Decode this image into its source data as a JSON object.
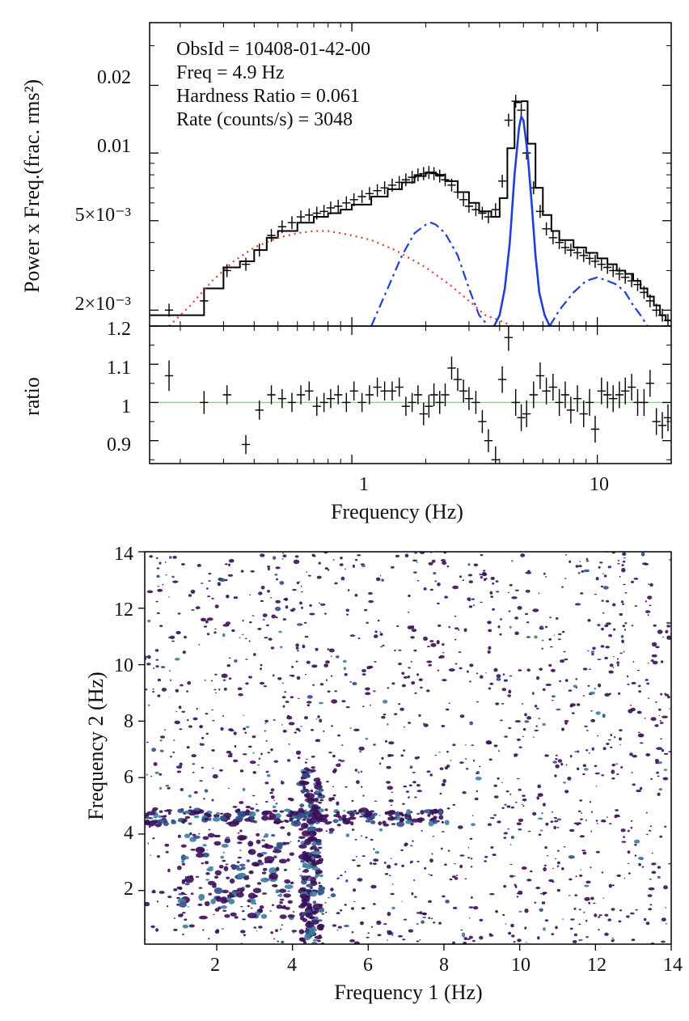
{
  "chart_data": [
    {
      "type": "line",
      "panel": "top",
      "xscale": "log",
      "yscale": "log",
      "xlim": [
        0.15,
        20
      ],
      "ylim": [
        0.0017,
        0.038
      ],
      "xlabel": "Frequency (Hz)",
      "ylabel": "Power x Freq.(frac. rms²)",
      "ytick_labels": [
        {
          "value": 0.02,
          "text": "0.02"
        },
        {
          "value": 0.01,
          "text": "0.01"
        },
        {
          "value": 0.005,
          "text": "5×10⁻³"
        },
        {
          "value": 0.002,
          "text": "2×10⁻³"
        }
      ],
      "annotations": [
        "ObsId = 10408-01-42-00",
        "Freq = 4.9 Hz",
        "Hardness Ratio = 0.061",
        "Rate (counts/s) = 3048"
      ],
      "colors": {
        "data": "#000000",
        "model": "#000000",
        "continuum": "#e8352b",
        "lorentzian": "#1f3fd8"
      },
      "series": [
        {
          "name": "data",
          "style": "crosses",
          "x": [
            0.18,
            0.25,
            0.31,
            0.37,
            0.42,
            0.47,
            0.52,
            0.57,
            0.62,
            0.67,
            0.72,
            0.77,
            0.82,
            0.88,
            0.95,
            1.02,
            1.1,
            1.18,
            1.27,
            1.36,
            1.46,
            1.56,
            1.66,
            1.76,
            1.86,
            1.96,
            2.06,
            2.16,
            2.28,
            2.4,
            2.55,
            2.7,
            2.85,
            3.0,
            3.2,
            3.4,
            3.6,
            3.85,
            4.1,
            4.35,
            4.65,
            4.9,
            5.15,
            5.5,
            5.85,
            6.2,
            6.6,
            7.0,
            7.4,
            7.8,
            8.3,
            8.8,
            9.3,
            9.8,
            10.4,
            11.0,
            11.6,
            12.3,
            13.0,
            13.8,
            14.6,
            15.5,
            16.4,
            17.4,
            18.4,
            19.4
          ],
          "y": [
            0.002,
            0.0022,
            0.003,
            0.0032,
            0.0037,
            0.0043,
            0.0047,
            0.0049,
            0.0052,
            0.0053,
            0.0054,
            0.0055,
            0.0057,
            0.0058,
            0.006,
            0.0062,
            0.0064,
            0.0066,
            0.0068,
            0.007,
            0.0072,
            0.0074,
            0.0076,
            0.0078,
            0.008,
            0.0081,
            0.0082,
            0.0081,
            0.0079,
            0.0076,
            0.0072,
            0.0067,
            0.0062,
            0.0058,
            0.0056,
            0.0054,
            0.0052,
            0.0056,
            0.0075,
            0.014,
            0.017,
            0.0155,
            0.01,
            0.007,
            0.0055,
            0.0046,
            0.0042,
            0.004,
            0.0038,
            0.0037,
            0.0036,
            0.0035,
            0.0034,
            0.0033,
            0.0032,
            0.0031,
            0.003,
            0.0029,
            0.0028,
            0.0027,
            0.0026,
            0.0024,
            0.0022,
            0.002,
            0.0019,
            0.0018
          ]
        },
        {
          "name": "model",
          "style": "step",
          "x": [
            0.15,
            0.2,
            0.25,
            0.3,
            0.35,
            0.4,
            0.45,
            0.5,
            0.6,
            0.7,
            0.8,
            0.9,
            1.0,
            1.2,
            1.4,
            1.6,
            1.8,
            2.0,
            2.2,
            2.4,
            2.7,
            3.0,
            3.3,
            3.7,
            4.0,
            4.3,
            4.6,
            4.9,
            5.2,
            5.6,
            6.0,
            6.5,
            7.0,
            8.0,
            9.0,
            10.0,
            11.0,
            12.0,
            13.0,
            14.0,
            15.0,
            16.0,
            17.0,
            18.0,
            19.0,
            20.0
          ],
          "y": [
            0.0019,
            0.0019,
            0.0025,
            0.0031,
            0.0033,
            0.0037,
            0.0042,
            0.0045,
            0.0049,
            0.0052,
            0.0054,
            0.0056,
            0.0059,
            0.0064,
            0.0069,
            0.0074,
            0.0079,
            0.0082,
            0.008,
            0.0075,
            0.0067,
            0.006,
            0.0055,
            0.0052,
            0.0063,
            0.0105,
            0.0168,
            0.017,
            0.011,
            0.007,
            0.0053,
            0.0045,
            0.0041,
            0.0038,
            0.0036,
            0.0034,
            0.0032,
            0.003,
            0.0029,
            0.0027,
            0.0025,
            0.0023,
            0.0021,
            0.0019,
            0.0018,
            0.0017
          ]
        },
        {
          "name": "continuum",
          "style": "dotted",
          "x": [
            0.18,
            0.22,
            0.27,
            0.33,
            0.4,
            0.5,
            0.6,
            0.7,
            0.8,
            0.9,
            1.0,
            1.2,
            1.5,
            2.0,
            2.5,
            3.0,
            3.5,
            4.0,
            4.5
          ],
          "y": [
            0.0017,
            0.0021,
            0.0027,
            0.0033,
            0.0038,
            0.0042,
            0.0044,
            0.0045,
            0.0045,
            0.0044,
            0.0043,
            0.0041,
            0.0037,
            0.0031,
            0.0026,
            0.0022,
            0.0019,
            0.0018,
            0.0017
          ]
        },
        {
          "name": "qpo_low",
          "style": "dashdot",
          "x": [
            1.2,
            1.4,
            1.6,
            1.8,
            2.0,
            2.1,
            2.2,
            2.4,
            2.7,
            3.0,
            3.3,
            3.6
          ],
          "y": [
            0.0017,
            0.0025,
            0.0035,
            0.0044,
            0.0048,
            0.0049,
            0.0048,
            0.0044,
            0.0035,
            0.0025,
            0.0019,
            0.0017
          ]
        },
        {
          "name": "qpo_main",
          "style": "solid",
          "x": [
            3.8,
            4.0,
            4.2,
            4.4,
            4.6,
            4.8,
            4.9,
            5.0,
            5.2,
            5.4,
            5.6,
            5.8,
            6.1,
            6.4
          ],
          "y": [
            0.0017,
            0.0019,
            0.0025,
            0.004,
            0.008,
            0.013,
            0.0145,
            0.014,
            0.01,
            0.006,
            0.0035,
            0.0024,
            0.0019,
            0.0017
          ]
        },
        {
          "name": "qpo_harmonic",
          "style": "dashdot",
          "x": [
            6.4,
            7.0,
            8.0,
            9.0,
            10.0,
            11.0,
            12.0,
            13.0,
            14.0,
            15.0,
            16.0
          ],
          "y": [
            0.0017,
            0.002,
            0.0024,
            0.0027,
            0.0028,
            0.0027,
            0.0026,
            0.0024,
            0.0021,
            0.0019,
            0.0017
          ]
        }
      ]
    },
    {
      "type": "line",
      "panel": "ratio",
      "xscale": "log",
      "xlim": [
        0.15,
        20
      ],
      "ylim": [
        0.84,
        1.2
      ],
      "ylabel": "ratio",
      "xlabel": "Frequency (Hz)",
      "yticks": [
        0.9,
        1,
        1.1,
        1.2
      ],
      "ytick_labels": [
        "0.9",
        "1",
        "1.1",
        "1.2"
      ],
      "xtick_labels": [
        {
          "value": 1,
          "text": "1"
        },
        {
          "value": 10,
          "text": "10"
        }
      ],
      "reference_line": 1,
      "reference_color": "#7fd87f",
      "x": [
        0.18,
        0.25,
        0.31,
        0.37,
        0.42,
        0.47,
        0.52,
        0.57,
        0.62,
        0.67,
        0.72,
        0.77,
        0.82,
        0.88,
        0.95,
        1.02,
        1.1,
        1.18,
        1.27,
        1.36,
        1.46,
        1.56,
        1.66,
        1.76,
        1.86,
        1.96,
        2.06,
        2.16,
        2.28,
        2.4,
        2.55,
        2.7,
        2.85,
        3.0,
        3.2,
        3.4,
        3.6,
        3.85,
        4.1,
        4.35,
        4.65,
        4.9,
        5.15,
        5.5,
        5.85,
        6.2,
        6.6,
        7.0,
        7.4,
        7.8,
        8.3,
        8.8,
        9.3,
        9.8,
        10.4,
        11.0,
        11.6,
        12.3,
        13.0,
        13.8,
        14.6,
        15.5,
        16.4,
        17.4,
        18.4,
        19.4
      ],
      "y": [
        1.07,
        1.0,
        1.02,
        0.89,
        0.98,
        1.02,
        1.01,
        1.0,
        1.02,
        1.03,
        0.99,
        1.0,
        1.01,
        1.02,
        1.0,
        1.03,
        1.0,
        1.02,
        1.04,
        1.03,
        1.03,
        1.04,
        0.99,
        1.0,
        1.02,
        0.97,
        0.99,
        1.02,
        1.0,
        1.02,
        1.09,
        1.06,
        1.03,
        1.01,
        1.0,
        0.95,
        0.9,
        0.85,
        1.06,
        1.17,
        1.0,
        0.96,
        0.97,
        1.02,
        1.07,
        1.03,
        1.04,
        1.0,
        1.02,
        0.98,
        1.01,
        0.97,
        1.0,
        0.93,
        1.03,
        1.02,
        1.01,
        1.02,
        1.03,
        1.04,
        1.0,
        1.0,
        1.05,
        0.95,
        0.94,
        0.96
      ],
      "yerr": [
        0.04,
        0.03,
        0.025,
        0.025,
        0.025,
        0.025,
        0.025,
        0.025,
        0.025,
        0.025,
        0.025,
        0.025,
        0.025,
        0.025,
        0.025,
        0.025,
        0.025,
        0.025,
        0.025,
        0.025,
        0.025,
        0.025,
        0.025,
        0.025,
        0.025,
        0.03,
        0.03,
        0.03,
        0.03,
        0.03,
        0.03,
        0.03,
        0.03,
        0.03,
        0.03,
        0.03,
        0.03,
        0.035,
        0.035,
        0.035,
        0.035,
        0.035,
        0.035,
        0.035,
        0.035,
        0.035,
        0.035,
        0.035,
        0.035,
        0.035,
        0.035,
        0.035,
        0.035,
        0.035,
        0.035,
        0.035,
        0.035,
        0.035,
        0.035,
        0.035,
        0.035,
        0.035,
        0.035,
        0.035,
        0.035,
        0.035
      ]
    },
    {
      "type": "scatter",
      "panel": "bispectrum",
      "xlim": [
        0.1,
        14
      ],
      "ylim": [
        0.1,
        14
      ],
      "xticks": [
        2,
        4,
        6,
        8,
        10,
        12,
        14
      ],
      "yticks": [
        2,
        4,
        6,
        8,
        10,
        12,
        14
      ],
      "xtick_labels": [
        "2",
        "4",
        "6",
        "8",
        "10",
        "12",
        "14"
      ],
      "ytick_labels": [
        "2",
        "4",
        "6",
        "8",
        "10",
        "12",
        "14"
      ],
      "xlabel": "Frequency 1 (Hz)",
      "ylabel": "Frequency 2 (Hz)",
      "colormap": [
        "#3b0f5a",
        "#2f4e87",
        "#3d7ea0"
      ],
      "features": {
        "vertical_line_f1": 4.5,
        "horizontal_line_f2": 4.6,
        "background_points": 1500,
        "line_points_each": 220,
        "cluster_center": [
          2.5,
          2.5
        ]
      }
    }
  ]
}
